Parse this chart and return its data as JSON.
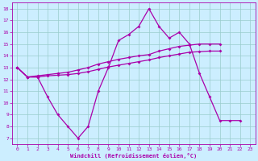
{
  "xlabel": "Windchill (Refroidissement éolien,°C)",
  "xlim": [
    -0.5,
    23.5
  ],
  "ylim": [
    6.5,
    18.5
  ],
  "xticks": [
    0,
    1,
    2,
    3,
    4,
    5,
    6,
    7,
    8,
    9,
    10,
    11,
    12,
    13,
    14,
    15,
    16,
    17,
    18,
    19,
    20,
    21,
    22,
    23
  ],
  "yticks": [
    7,
    8,
    9,
    10,
    11,
    12,
    13,
    14,
    15,
    16,
    17,
    18
  ],
  "bg_color": "#cceeff",
  "grid_color": "#99cccc",
  "line_color": "#aa00aa",
  "line1_x": [
    0,
    1,
    2,
    3,
    4,
    5,
    6,
    7,
    8,
    9,
    10,
    11,
    12,
    13,
    14,
    15,
    16,
    17,
    18,
    19,
    20,
    21,
    22
  ],
  "line1_y": [
    13.0,
    12.2,
    12.2,
    10.5,
    9.0,
    8.0,
    7.0,
    8.0,
    11.0,
    13.0,
    15.3,
    15.8,
    16.5,
    18.0,
    16.5,
    15.5,
    16.0,
    15.0,
    12.5,
    10.5,
    8.5,
    8.5,
    8.5
  ],
  "line2_x": [
    0,
    1,
    2,
    3,
    4,
    5,
    6,
    7,
    8,
    9,
    10,
    11,
    12,
    13,
    14,
    15,
    16,
    17,
    18,
    19,
    20
  ],
  "line2_y": [
    13.0,
    12.2,
    12.3,
    12.4,
    12.5,
    12.6,
    12.8,
    13.0,
    13.3,
    13.5,
    13.7,
    13.85,
    14.0,
    14.1,
    14.4,
    14.6,
    14.8,
    14.9,
    15.0,
    15.0,
    15.0
  ],
  "line3_x": [
    0,
    1,
    2,
    3,
    4,
    5,
    6,
    7,
    8,
    9,
    10,
    11,
    12,
    13,
    14,
    15,
    16,
    17,
    18,
    19,
    20
  ],
  "line3_y": [
    13.0,
    12.2,
    12.2,
    12.3,
    12.35,
    12.4,
    12.5,
    12.65,
    12.85,
    13.05,
    13.2,
    13.35,
    13.5,
    13.65,
    13.85,
    14.0,
    14.15,
    14.3,
    14.35,
    14.4,
    14.4
  ]
}
